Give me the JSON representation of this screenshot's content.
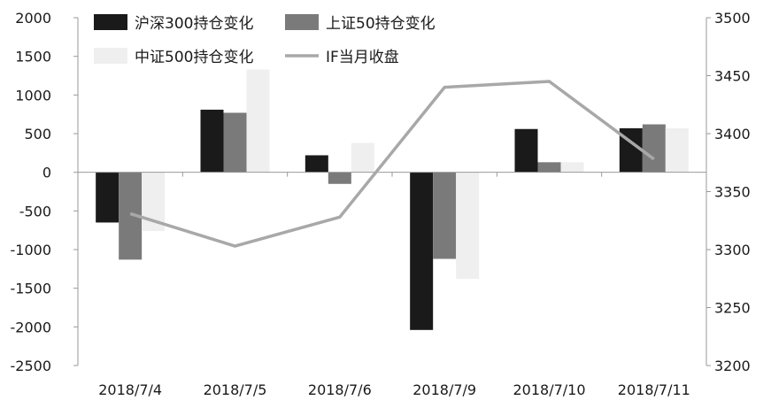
{
  "chart_data": {
    "type": "bar",
    "categories": [
      "2018/7/4",
      "2018/7/5",
      "2018/7/6",
      "2018/7/9",
      "2018/7/10",
      "2018/7/11"
    ],
    "series": [
      {
        "name": "沪深300持仓变化",
        "type": "bar",
        "axis": "left",
        "color": "#1a1a1a",
        "values": [
          -650,
          810,
          220,
          -2040,
          560,
          570
        ]
      },
      {
        "name": "上证50持仓变化",
        "type": "bar",
        "axis": "left",
        "color": "#7a7a7a",
        "values": [
          -1130,
          770,
          -150,
          -1120,
          130,
          620
        ]
      },
      {
        "name": "中证500持仓变化",
        "type": "bar",
        "axis": "left",
        "color": "#efefef",
        "values": [
          -760,
          1330,
          380,
          -1380,
          130,
          570
        ]
      },
      {
        "name": "IF当月收盘",
        "type": "line",
        "axis": "right",
        "color": "#a8a8a8",
        "values": [
          3331,
          3303,
          3328,
          3440,
          3445,
          3378
        ]
      }
    ],
    "left_axis": {
      "min": -2500,
      "max": 2000,
      "ticks": [
        "2000",
        "1500",
        "1000",
        "500",
        "0",
        "-500",
        "-1000",
        "-1500",
        "-2000",
        "-2500"
      ]
    },
    "right_axis": {
      "min": 3200,
      "max": 3500,
      "ticks": [
        "3500",
        "3450",
        "3400",
        "3350",
        "3300",
        "3250",
        "3200"
      ]
    },
    "legend": {
      "placement": "top-left",
      "columns": 2
    },
    "grid": false
  }
}
